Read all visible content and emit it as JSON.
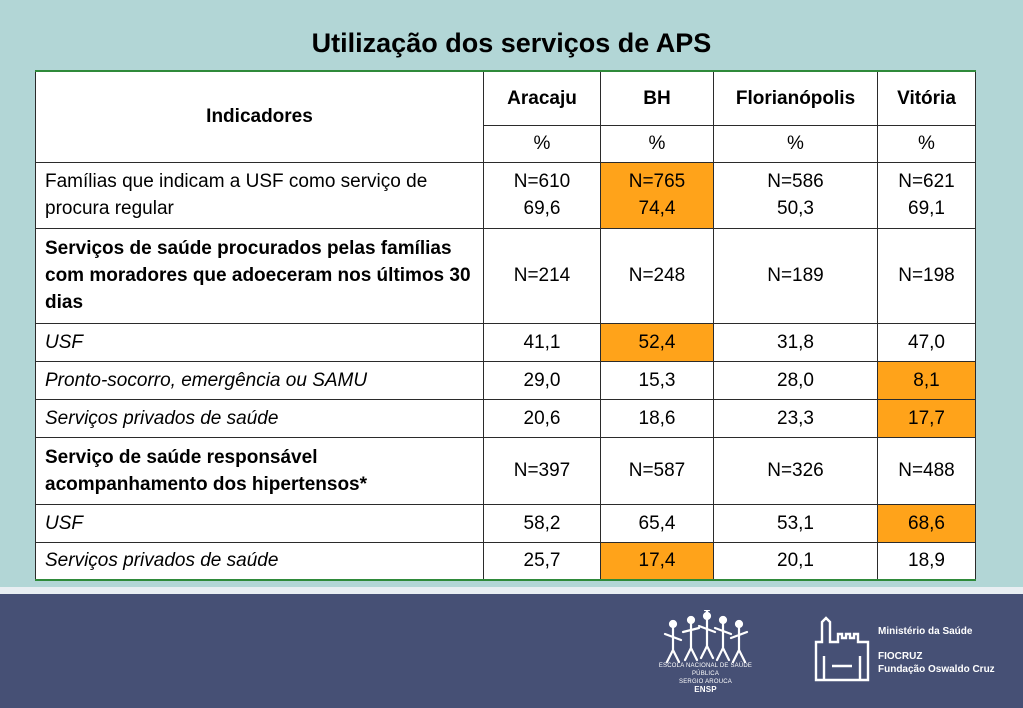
{
  "title": "Utilização dos serviços de APS",
  "table": {
    "indicator_header": "Indicadores",
    "cities": [
      "Aracaju",
      "BH",
      "Florianópolis",
      "Vitória"
    ],
    "unit": "%",
    "rows": [
      {
        "label": "Famílias que indicam a USF como serviço de procura regular",
        "style": "normal",
        "values": [
          [
            "N=610",
            "69,6"
          ],
          [
            "N=765",
            "74,4"
          ],
          [
            "N=586",
            "50,3"
          ],
          [
            "N=621",
            "69,1"
          ]
        ],
        "highlight": [
          false,
          true,
          false,
          false
        ],
        "height": 66
      },
      {
        "label": "Serviços de saúde procurados pelas famílias com moradores que adoeceram nos últimos 30 dias",
        "style": "bold",
        "values": [
          [
            "N=214"
          ],
          [
            "N=248"
          ],
          [
            "N=189"
          ],
          [
            "N=198"
          ]
        ],
        "highlight": [
          false,
          false,
          false,
          false
        ],
        "height": 95
      },
      {
        "label": "USF",
        "style": "italic",
        "values": [
          [
            "41,1"
          ],
          [
            "52,4"
          ],
          [
            "31,8"
          ],
          [
            "47,0"
          ]
        ],
        "highlight": [
          false,
          true,
          false,
          false
        ],
        "height": 38
      },
      {
        "label": "Pronto-socorro, emergência ou SAMU",
        "style": "italic",
        "values": [
          [
            "29,0"
          ],
          [
            "15,3"
          ],
          [
            "28,0"
          ],
          [
            "8,1"
          ]
        ],
        "highlight": [
          false,
          false,
          false,
          true
        ],
        "height": 38
      },
      {
        "label": "Serviços privados de saúde",
        "style": "italic",
        "values": [
          [
            "20,6"
          ],
          [
            "18,6"
          ],
          [
            "23,3"
          ],
          [
            "17,7"
          ]
        ],
        "highlight": [
          false,
          false,
          false,
          true
        ],
        "height": 38
      },
      {
        "label": "Serviço de saúde responsável acompanhamento dos hipertensos*",
        "style": "bold",
        "values": [
          [
            "N=397"
          ],
          [
            "N=587"
          ],
          [
            "N=326"
          ],
          [
            "N=488"
          ]
        ],
        "highlight": [
          false,
          false,
          false,
          false
        ],
        "height": 67
      },
      {
        "label": "USF",
        "style": "italic",
        "values": [
          [
            "58,2"
          ],
          [
            "65,4"
          ],
          [
            "53,1"
          ],
          [
            "68,6"
          ]
        ],
        "highlight": [
          false,
          false,
          false,
          true
        ],
        "height": 38
      },
      {
        "label": "Serviços privados de saúde",
        "style": "italic",
        "values": [
          [
            "25,7"
          ],
          [
            "17,4"
          ],
          [
            "20,1"
          ],
          [
            "18,9"
          ]
        ],
        "highlight": [
          false,
          true,
          false,
          false
        ],
        "height": 38
      }
    ]
  },
  "footer": {
    "ensp_line1": "ESCOLA NACIONAL DE SAÚDE PÚBLICA",
    "ensp_line2": "SERGIO AROUCA",
    "ensp_acronym": "ENSP",
    "ministry": "Ministério da Saúde",
    "fiocruz": "FIOCRUZ",
    "fiocruz_full": "Fundação Oswaldo Cruz"
  },
  "colors": {
    "background": "#b2d6d6",
    "highlight": "#ffa31a",
    "footer": "#465075",
    "rule": "#2f8a3a"
  }
}
